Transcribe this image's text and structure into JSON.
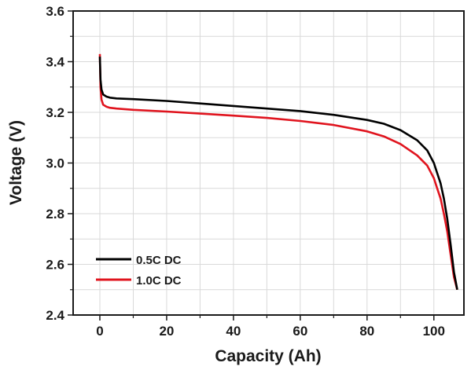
{
  "chart_data": {
    "type": "line",
    "xlabel": "Capacity (Ah)",
    "ylabel": "Voltage (V)",
    "xlim": [
      -8,
      109
    ],
    "ylim": [
      2.4,
      3.6
    ],
    "xticks": [
      0,
      20,
      40,
      60,
      80,
      100
    ],
    "yticks": [
      2.4,
      2.6,
      2.8,
      3.0,
      3.2,
      3.4,
      3.6
    ],
    "xtick_labels": [
      "0",
      "20",
      "40",
      "60",
      "80",
      "100"
    ],
    "ytick_labels": [
      "2.4",
      "2.6",
      "2.8",
      "3.0",
      "3.2",
      "3.4",
      "3.6"
    ],
    "grid": true,
    "legend_position": "bottom-left",
    "series": [
      {
        "name": "0.5C DC",
        "color": "#000000",
        "x": [
          0,
          0.2,
          0.5,
          1,
          2,
          3,
          5,
          10,
          20,
          30,
          40,
          50,
          60,
          70,
          80,
          85,
          90,
          95,
          98,
          100,
          101,
          102,
          103,
          104,
          105,
          106,
          107
        ],
        "y": [
          3.42,
          3.33,
          3.29,
          3.27,
          3.262,
          3.258,
          3.255,
          3.252,
          3.245,
          3.235,
          3.225,
          3.215,
          3.205,
          3.19,
          3.17,
          3.155,
          3.13,
          3.09,
          3.05,
          3.0,
          2.96,
          2.92,
          2.86,
          2.78,
          2.68,
          2.57,
          2.5
        ]
      },
      {
        "name": "1.0C DC",
        "color": "#e0141e",
        "x": [
          0,
          0.2,
          0.5,
          1,
          2,
          3,
          5,
          10,
          20,
          30,
          40,
          50,
          60,
          70,
          80,
          85,
          90,
          95,
          98,
          100,
          101,
          102,
          103,
          104,
          105,
          106,
          107
        ],
        "y": [
          3.43,
          3.3,
          3.25,
          3.23,
          3.222,
          3.218,
          3.215,
          3.21,
          3.203,
          3.195,
          3.187,
          3.178,
          3.166,
          3.15,
          3.125,
          3.105,
          3.075,
          3.03,
          2.99,
          2.94,
          2.9,
          2.86,
          2.8,
          2.73,
          2.64,
          2.55,
          2.5
        ]
      }
    ]
  }
}
